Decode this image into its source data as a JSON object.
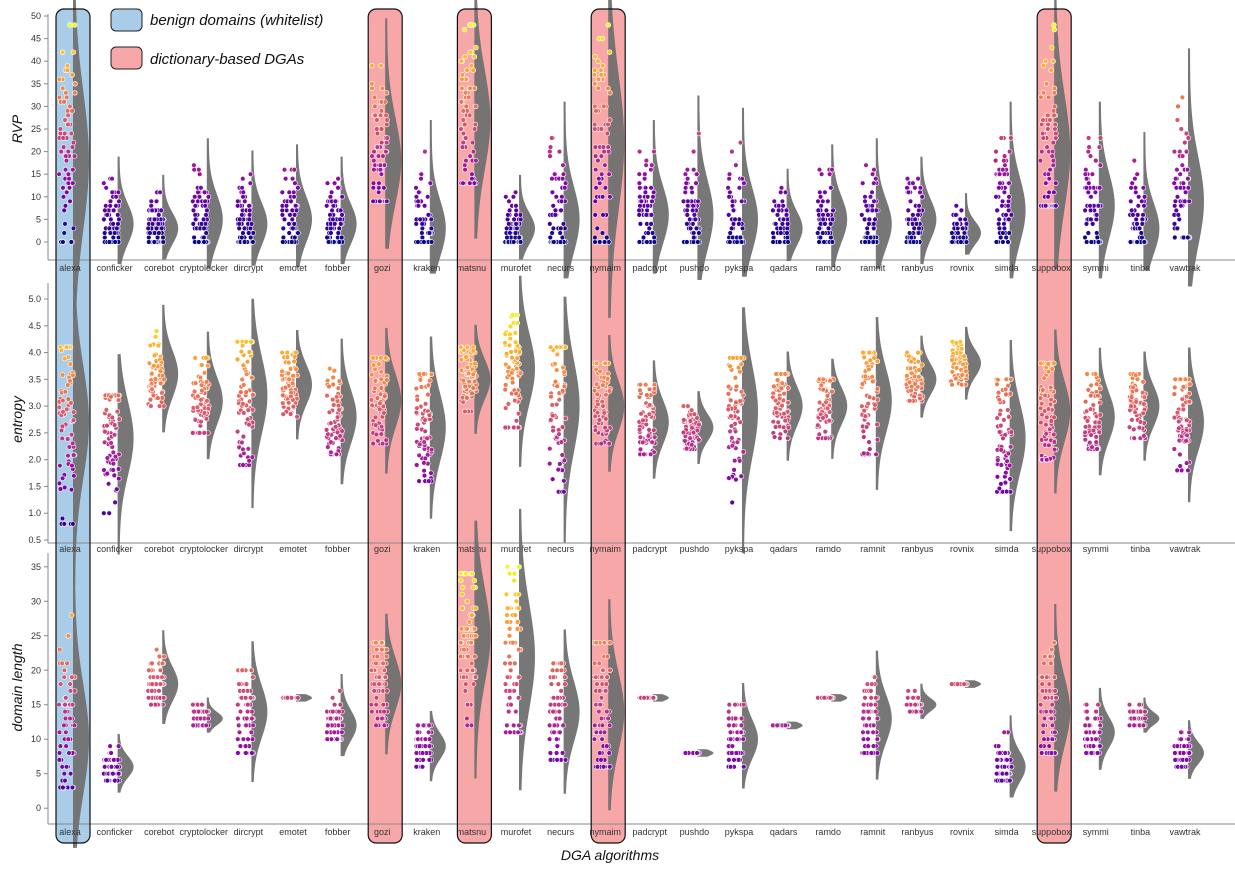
{
  "legend": [
    {
      "label": "benign domains (whitelist)",
      "color": "#a9cce8"
    },
    {
      "label": "dictionary-based DGAs",
      "color": "#f7a7a7"
    }
  ],
  "x_axis_title": "DGA algorithms",
  "highlights": {
    "benign": [
      "alexa"
    ],
    "dictionary": [
      "gozi",
      "matsnu",
      "nymaim",
      "suppobox"
    ]
  },
  "colors": {
    "benign_fill": "#a9cce8",
    "dictionary_fill": "#f7a7a7",
    "density": "#707070"
  },
  "chart_data": {
    "type": "scatter",
    "style": "raincloud (jittered points + half-violin density)",
    "xlabel": "DGA algorithms",
    "categories": [
      "alexa",
      "conficker",
      "corebot",
      "cryptolocker",
      "dircrypt",
      "emotet",
      "fobber",
      "gozi",
      "kraken",
      "matsnu",
      "murofet",
      "necurs",
      "nymaim",
      "padcrypt",
      "pushdo",
      "pykspa",
      "qadars",
      "ramdo",
      "ramnit",
      "ranbyus",
      "rovnix",
      "simda",
      "suppobox",
      "symmi",
      "tinba",
      "vawtrak"
    ],
    "panels": [
      {
        "ylabel": "RVP",
        "ylim": [
          0,
          50
        ],
        "yticks": [
          0,
          5,
          10,
          15,
          20,
          25,
          30,
          35,
          40,
          45,
          50
        ],
        "tick_format": "int",
        "stats": [
          {
            "min": 0,
            "max": 48,
            "median": 18
          },
          {
            "min": 0,
            "max": 14,
            "median": 4
          },
          {
            "min": 0,
            "max": 11,
            "median": 3
          },
          {
            "min": 0,
            "max": 17,
            "median": 5
          },
          {
            "min": 0,
            "max": 15,
            "median": 4
          },
          {
            "min": 0,
            "max": 16,
            "median": 5
          },
          {
            "min": 0,
            "max": 14,
            "median": 4
          },
          {
            "min": 9,
            "max": 39,
            "median": 18
          },
          {
            "min": 0,
            "max": 20,
            "median": 3
          },
          {
            "min": 13,
            "max": 48,
            "median": 27
          },
          {
            "min": 0,
            "max": 11,
            "median": 3
          },
          {
            "min": 0,
            "max": 23,
            "median": 5
          },
          {
            "min": 0,
            "max": 48,
            "median": 22
          },
          {
            "min": 0,
            "max": 20,
            "median": 6
          },
          {
            "min": 0,
            "max": 24,
            "median": 6
          },
          {
            "min": 0,
            "max": 22,
            "median": 5
          },
          {
            "min": 0,
            "max": 12,
            "median": 3
          },
          {
            "min": 0,
            "max": 16,
            "median": 5
          },
          {
            "min": 0,
            "max": 17,
            "median": 4
          },
          {
            "min": 0,
            "max": 14,
            "median": 5
          },
          {
            "min": 0,
            "max": 8,
            "median": 2
          },
          {
            "min": 0,
            "max": 23,
            "median": 7
          },
          {
            "min": 8,
            "max": 48,
            "median": 20
          },
          {
            "min": 0,
            "max": 23,
            "median": 8
          },
          {
            "min": 0,
            "max": 18,
            "median": 3
          },
          {
            "min": 1,
            "max": 32,
            "median": 9
          }
        ]
      },
      {
        "ylabel": "entropy",
        "ylim": [
          0.5,
          5.0
        ],
        "yticks": [
          0.5,
          1.0,
          1.5,
          2.0,
          2.5,
          3.0,
          3.5,
          4.0,
          4.5,
          5.0
        ],
        "tick_format": "1dp",
        "stats": [
          {
            "min": 0.8,
            "max": 4.1,
            "median": 2.7
          },
          {
            "min": 1.0,
            "max": 3.2,
            "median": 2.4
          },
          {
            "min": 3.0,
            "max": 4.4,
            "median": 3.6
          },
          {
            "min": 2.5,
            "max": 3.9,
            "median": 3.1
          },
          {
            "min": 1.9,
            "max": 4.2,
            "median": 3.2
          },
          {
            "min": 2.8,
            "max": 4.0,
            "median": 3.4
          },
          {
            "min": 2.1,
            "max": 3.7,
            "median": 2.8
          },
          {
            "min": 2.3,
            "max": 3.9,
            "median": 3.1
          },
          {
            "min": 1.6,
            "max": 3.6,
            "median": 2.6
          },
          {
            "min": 2.9,
            "max": 4.1,
            "median": 3.5
          },
          {
            "min": 2.6,
            "max": 4.7,
            "median": 3.7
          },
          {
            "min": 1.4,
            "max": 4.1,
            "median": 3.0
          },
          {
            "min": 2.3,
            "max": 3.8,
            "median": 3.0
          },
          {
            "min": 2.1,
            "max": 3.4,
            "median": 2.7
          },
          {
            "min": 2.2,
            "max": 3.0,
            "median": 2.6
          },
          {
            "min": 1.2,
            "max": 3.9,
            "median": 2.9
          },
          {
            "min": 2.4,
            "max": 3.6,
            "median": 3.0
          },
          {
            "min": 2.4,
            "max": 3.5,
            "median": 3.0
          },
          {
            "min": 2.1,
            "max": 4.0,
            "median": 3.1
          },
          {
            "min": 3.1,
            "max": 4.0,
            "median": 3.5
          },
          {
            "min": 3.4,
            "max": 4.2,
            "median": 3.8
          },
          {
            "min": 1.4,
            "max": 3.5,
            "median": 2.4
          },
          {
            "min": 2.0,
            "max": 3.8,
            "median": 2.9
          },
          {
            "min": 2.2,
            "max": 3.6,
            "median": 2.8
          },
          {
            "min": 2.4,
            "max": 3.6,
            "median": 3.0
          },
          {
            "min": 1.8,
            "max": 3.5,
            "median": 2.7
          }
        ]
      },
      {
        "ylabel": "domain length",
        "ylim": [
          -2,
          37
        ],
        "yticks": [
          0,
          5,
          10,
          15,
          20,
          25,
          30,
          35
        ],
        "tick_format": "int",
        "stats": [
          {
            "min": 3,
            "max": 28,
            "median": 10
          },
          {
            "min": 4,
            "max": 9,
            "median": 6
          },
          {
            "min": 15,
            "max": 23,
            "median": 18
          },
          {
            "min": 12,
            "max": 15,
            "median": 13
          },
          {
            "min": 8,
            "max": 20,
            "median": 14
          },
          {
            "min": 16,
            "max": 16,
            "median": 16
          },
          {
            "min": 10,
            "max": 17,
            "median": 12
          },
          {
            "min": 12,
            "max": 24,
            "median": 18
          },
          {
            "min": 6,
            "max": 12,
            "median": 9
          },
          {
            "min": 12,
            "max": 34,
            "median": 25
          },
          {
            "min": 11,
            "max": 35,
            "median": 22
          },
          {
            "min": 7,
            "max": 21,
            "median": 14
          },
          {
            "min": 6,
            "max": 24,
            "median": 14
          },
          {
            "min": 16,
            "max": 16,
            "median": 16
          },
          {
            "min": 8,
            "max": 8,
            "median": 8
          },
          {
            "min": 6,
            "max": 15,
            "median": 10
          },
          {
            "min": 12,
            "max": 12,
            "median": 12
          },
          {
            "min": 16,
            "max": 16,
            "median": 16
          },
          {
            "min": 8,
            "max": 19,
            "median": 13
          },
          {
            "min": 14,
            "max": 17,
            "median": 15
          },
          {
            "min": 18,
            "max": 18,
            "median": 18
          },
          {
            "min": 4,
            "max": 11,
            "median": 6
          },
          {
            "min": 8,
            "max": 24,
            "median": 14
          },
          {
            "min": 8,
            "max": 15,
            "median": 11
          },
          {
            "min": 12,
            "max": 15,
            "median": 13
          },
          {
            "min": 6,
            "max": 11,
            "median": 8
          }
        ]
      }
    ]
  }
}
